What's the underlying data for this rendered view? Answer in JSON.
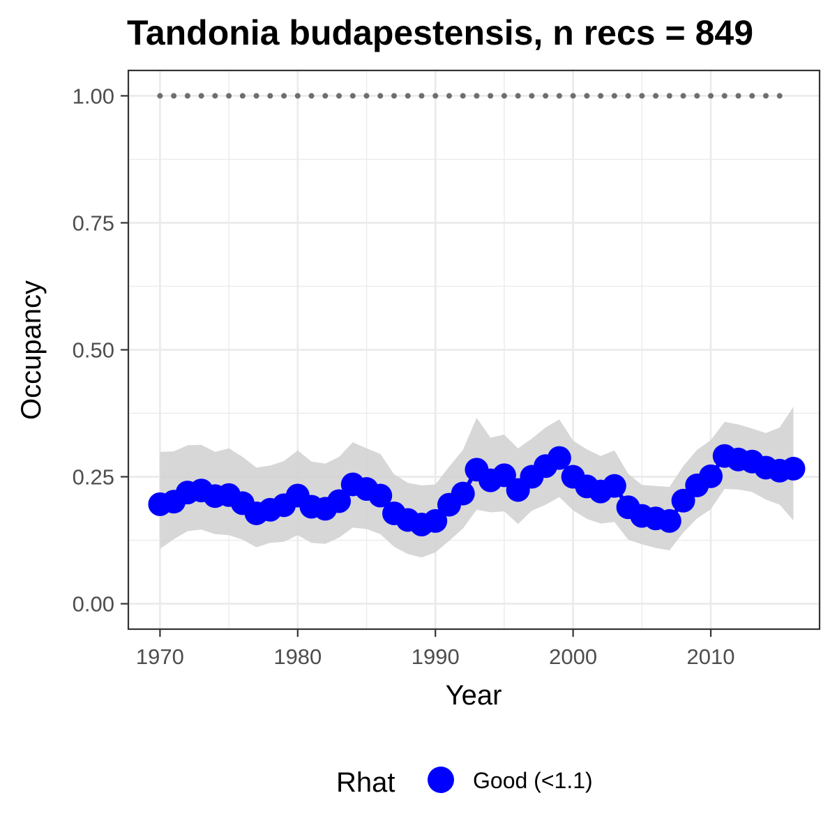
{
  "chart_data": {
    "type": "line",
    "title": "Tandonia budapestensis, n recs = 849",
    "xlabel": "Year",
    "ylabel": "Occupancy",
    "xlim": [
      1967.7,
      2017.9
    ],
    "ylim": [
      -0.05,
      1.05
    ],
    "x_ticks": [
      1970,
      1980,
      1990,
      2000,
      2010
    ],
    "x_tick_labels": [
      "1970",
      "1980",
      "1990",
      "2000",
      "2010"
    ],
    "y_ticks": [
      0,
      0.25,
      0.5,
      0.75,
      1.0
    ],
    "y_tick_labels": [
      "0.00",
      "0.25",
      "0.50",
      "0.75",
      "1.00"
    ],
    "grid": true,
    "legend": {
      "title": "Rhat",
      "position": "bottom",
      "entries": [
        {
          "label": "Good (<1.1)",
          "color": "#0000ff"
        }
      ]
    },
    "colors": {
      "points": "#0000ff",
      "ribbon": "#d3d3d3",
      "reference": "#6e6e6e",
      "grid": "#ebebeb",
      "panel_border": "#333333"
    },
    "series": [
      {
        "name": "Good (<1.1)",
        "x": [
          1970,
          1971,
          1972,
          1973,
          1974,
          1975,
          1976,
          1977,
          1978,
          1979,
          1980,
          1981,
          1982,
          1983,
          1984,
          1985,
          1986,
          1987,
          1988,
          1989,
          1990,
          1991,
          1992,
          1993,
          1994,
          1995,
          1996,
          1997,
          1998,
          1999,
          2000,
          2001,
          2002,
          2003,
          2004,
          2005,
          2006,
          2007,
          2008,
          2009,
          2010,
          2011,
          2012,
          2013,
          2014,
          2015,
          2016
        ],
        "y": [
          0.196,
          0.201,
          0.219,
          0.223,
          0.212,
          0.214,
          0.198,
          0.178,
          0.185,
          0.194,
          0.213,
          0.191,
          0.187,
          0.202,
          0.235,
          0.226,
          0.213,
          0.178,
          0.165,
          0.156,
          0.163,
          0.195,
          0.217,
          0.264,
          0.243,
          0.253,
          0.224,
          0.25,
          0.271,
          0.287,
          0.25,
          0.231,
          0.221,
          0.232,
          0.19,
          0.173,
          0.168,
          0.163,
          0.203,
          0.233,
          0.251,
          0.291,
          0.284,
          0.28,
          0.268,
          0.262,
          0.266
        ],
        "lower": [
          0.108,
          0.127,
          0.143,
          0.146,
          0.137,
          0.135,
          0.126,
          0.111,
          0.12,
          0.122,
          0.135,
          0.12,
          0.118,
          0.13,
          0.15,
          0.147,
          0.137,
          0.112,
          0.098,
          0.091,
          0.101,
          0.124,
          0.148,
          0.185,
          0.18,
          0.182,
          0.157,
          0.183,
          0.195,
          0.21,
          0.184,
          0.167,
          0.158,
          0.161,
          0.126,
          0.117,
          0.11,
          0.105,
          0.14,
          0.168,
          0.186,
          0.226,
          0.225,
          0.22,
          0.205,
          0.195,
          0.164
        ],
        "upper": [
          0.299,
          0.3,
          0.312,
          0.313,
          0.299,
          0.306,
          0.289,
          0.268,
          0.272,
          0.281,
          0.302,
          0.28,
          0.276,
          0.289,
          0.318,
          0.306,
          0.295,
          0.255,
          0.238,
          0.233,
          0.235,
          0.27,
          0.303,
          0.366,
          0.327,
          0.333,
          0.306,
          0.325,
          0.347,
          0.363,
          0.321,
          0.304,
          0.291,
          0.302,
          0.256,
          0.234,
          0.232,
          0.23,
          0.271,
          0.303,
          0.322,
          0.358,
          0.353,
          0.345,
          0.336,
          0.347,
          0.388
        ]
      },
      {
        "x": [
          1970,
          1971,
          1972,
          1973,
          1974,
          1975,
          1976,
          1977,
          1978,
          1979,
          1980,
          1981,
          1982,
          1983,
          1984,
          1985,
          1986,
          1987,
          1988,
          1989,
          1990,
          1991,
          1992,
          1993,
          1994,
          1995,
          1996,
          1997,
          1998,
          1999,
          2000,
          2001,
          2002,
          2003,
          2004,
          2005,
          2006,
          2007,
          2008,
          2009,
          2010,
          2011,
          2012,
          2013,
          2014,
          2015
        ],
        "y": [
          1,
          1,
          1,
          1,
          1,
          1,
          1,
          1,
          1,
          1,
          1,
          1,
          1,
          1,
          1,
          1,
          1,
          1,
          1,
          1,
          1,
          1,
          1,
          1,
          1,
          1,
          1,
          1,
          1,
          1,
          1,
          1,
          1,
          1,
          1,
          1,
          1,
          1,
          1,
          1,
          1,
          1,
          1,
          1,
          1,
          1
        ]
      }
    ]
  }
}
